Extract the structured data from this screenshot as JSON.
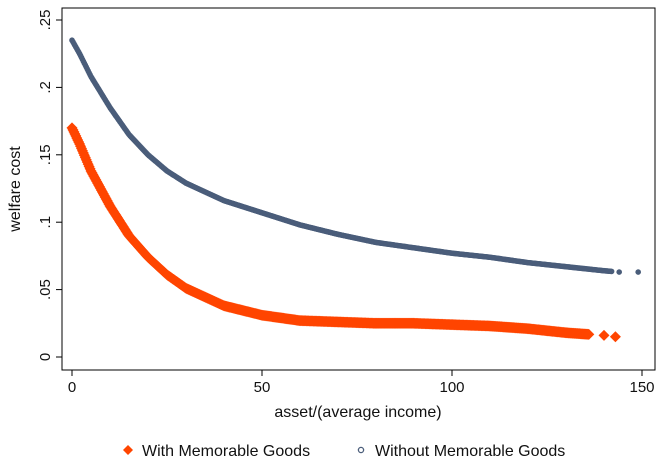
{
  "chart_data": {
    "type": "scatter",
    "xlabel": "asset/(average income)",
    "ylabel": "welfare cost",
    "xlim": [
      -2,
      150
    ],
    "ylim": [
      0,
      0.25
    ],
    "x_ticks": [
      0,
      50,
      100,
      150
    ],
    "x_tick_labels": [
      "0",
      "50",
      "100",
      "150"
    ],
    "y_ticks": [
      0,
      0.05,
      0.1,
      0.15,
      0.2,
      0.25
    ],
    "y_tick_labels": [
      "0",
      ".05",
      ".1",
      ".15",
      ".2",
      ".25"
    ],
    "grid": false,
    "legend_position": "bottom",
    "series": [
      {
        "name": "With Memorable Goods",
        "marker": "diamond",
        "color": "#ff4500",
        "x": [
          0,
          2,
          5,
          10,
          15,
          20,
          25,
          30,
          40,
          50,
          60,
          70,
          80,
          90,
          100,
          110,
          120,
          130,
          135,
          140,
          143
        ],
        "y": [
          0.17,
          0.158,
          0.138,
          0.112,
          0.09,
          0.074,
          0.061,
          0.051,
          0.038,
          0.031,
          0.027,
          0.026,
          0.025,
          0.025,
          0.024,
          0.023,
          0.021,
          0.018,
          0.017,
          0.016,
          0.015
        ]
      },
      {
        "name": "Without Memorable Goods",
        "marker": "circle",
        "color": "#4a5d7a",
        "x": [
          0,
          2,
          5,
          10,
          15,
          20,
          25,
          30,
          40,
          50,
          60,
          70,
          80,
          90,
          100,
          110,
          120,
          130,
          140,
          144,
          149
        ],
        "y": [
          0.235,
          0.225,
          0.208,
          0.185,
          0.165,
          0.15,
          0.138,
          0.129,
          0.116,
          0.107,
          0.098,
          0.091,
          0.085,
          0.081,
          0.077,
          0.074,
          0.07,
          0.067,
          0.064,
          0.063,
          0.063
        ]
      }
    ]
  }
}
